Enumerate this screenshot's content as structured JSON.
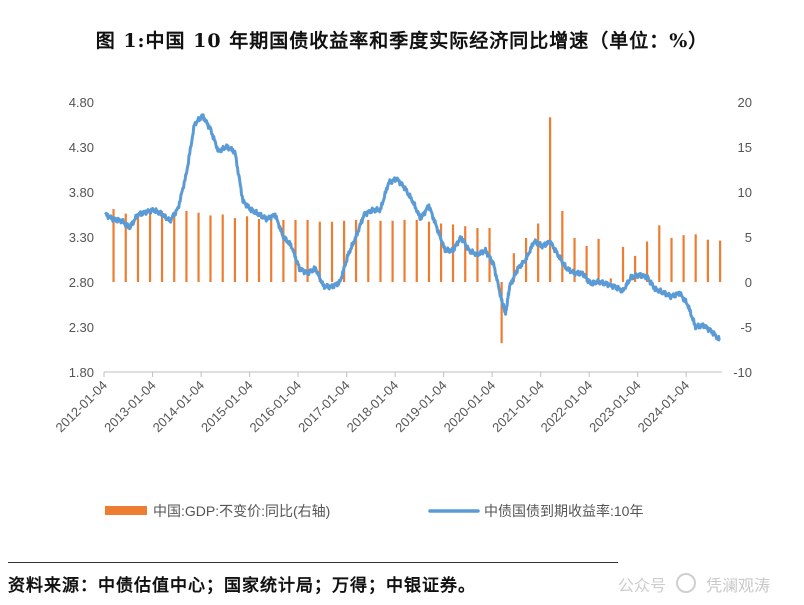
{
  "title": "图 1:中国 10 年期国债收益率和季度实际经济同比增速（单位：%）",
  "source": "资料来源：中债估值中心；国家统计局；万得；中银证券。",
  "watermark": {
    "text": "凭澜观涛",
    "sub": "公众号"
  },
  "colors": {
    "bar": "#ED7D31",
    "line": "#5B9BD5",
    "axis": "#bfbfbf"
  },
  "chart_data": {
    "type": "bar+line",
    "left_axis": {
      "ticks": [
        "1.80",
        "2.30",
        "2.80",
        "3.30",
        "3.80",
        "4.30",
        "4.80"
      ],
      "ylim": [
        1.8,
        4.8
      ]
    },
    "right_axis": {
      "ticks": [
        "-10",
        "-5",
        "0",
        "5",
        "10",
        "15",
        "20"
      ],
      "ylim": [
        -10,
        20
      ]
    },
    "x_ticks": [
      "2012-01-04",
      "2013-01-04",
      "2014-01-04",
      "2015-01-04",
      "2016-01-04",
      "2017-01-04",
      "2018-01-04",
      "2019-01-04",
      "2020-01-04",
      "2021-01-04",
      "2022-01-04",
      "2023-01-04",
      "2024-01-04"
    ],
    "x_range": [
      "2012-01-04",
      "2024-09-30"
    ],
    "series": [
      {
        "name": "中国:GDP:不变价:同比(右轴)",
        "type": "bar",
        "axis": "right",
        "dates": [
          "2012-03",
          "2012-06",
          "2012-09",
          "2012-12",
          "2013-03",
          "2013-06",
          "2013-09",
          "2013-12",
          "2014-03",
          "2014-06",
          "2014-09",
          "2014-12",
          "2015-03",
          "2015-06",
          "2015-09",
          "2015-12",
          "2016-03",
          "2016-06",
          "2016-09",
          "2016-12",
          "2017-03",
          "2017-06",
          "2017-09",
          "2017-12",
          "2018-03",
          "2018-06",
          "2018-09",
          "2018-12",
          "2019-03",
          "2019-06",
          "2019-09",
          "2019-12",
          "2020-03",
          "2020-06",
          "2020-09",
          "2020-12",
          "2021-03",
          "2021-06",
          "2021-09",
          "2021-12",
          "2022-03",
          "2022-06",
          "2022-09",
          "2022-12",
          "2023-03",
          "2023-06",
          "2023-09",
          "2023-12",
          "2024-03",
          "2024-06",
          "2024-09"
        ],
        "values": [
          8.1,
          7.6,
          7.5,
          8.1,
          7.9,
          7.6,
          7.9,
          7.7,
          7.4,
          7.5,
          7.1,
          7.3,
          7.0,
          7.0,
          6.9,
          6.9,
          6.9,
          6.7,
          6.7,
          6.8,
          6.9,
          6.9,
          6.8,
          6.8,
          6.9,
          6.9,
          6.7,
          6.5,
          6.4,
          6.2,
          6.0,
          6.0,
          -6.8,
          3.2,
          4.9,
          6.5,
          18.3,
          7.9,
          4.9,
          4.0,
          4.8,
          0.4,
          3.9,
          2.9,
          4.5,
          6.3,
          4.9,
          5.2,
          5.3,
          4.7,
          4.6
        ]
      },
      {
        "name": "中债国债到期收益率:10年",
        "type": "line",
        "axis": "left",
        "dates": [
          "2012-01",
          "2012-03",
          "2012-05",
          "2012-07",
          "2012-09",
          "2012-11",
          "2013-01",
          "2013-03",
          "2013-05",
          "2013-07",
          "2013-09",
          "2013-11",
          "2014-01",
          "2014-03",
          "2014-05",
          "2014-07",
          "2014-09",
          "2014-11",
          "2015-01",
          "2015-03",
          "2015-05",
          "2015-07",
          "2015-09",
          "2015-11",
          "2016-01",
          "2016-03",
          "2016-05",
          "2016-07",
          "2016-09",
          "2016-11",
          "2017-01",
          "2017-03",
          "2017-05",
          "2017-07",
          "2017-09",
          "2017-11",
          "2018-01",
          "2018-03",
          "2018-05",
          "2018-07",
          "2018-09",
          "2018-11",
          "2019-01",
          "2019-03",
          "2019-05",
          "2019-07",
          "2019-09",
          "2019-11",
          "2020-01",
          "2020-03",
          "2020-04",
          "2020-05",
          "2020-07",
          "2020-09",
          "2020-11",
          "2021-01",
          "2021-03",
          "2021-05",
          "2021-07",
          "2021-09",
          "2021-11",
          "2022-01",
          "2022-03",
          "2022-05",
          "2022-07",
          "2022-09",
          "2022-11",
          "2023-01",
          "2023-03",
          "2023-05",
          "2023-07",
          "2023-09",
          "2023-11",
          "2024-01",
          "2024-03",
          "2024-05",
          "2024-07",
          "2024-09"
        ],
        "values": [
          3.55,
          3.5,
          3.48,
          3.4,
          3.55,
          3.58,
          3.6,
          3.55,
          3.48,
          3.62,
          4.0,
          4.55,
          4.65,
          4.5,
          4.25,
          4.3,
          4.25,
          3.7,
          3.6,
          3.55,
          3.5,
          3.55,
          3.3,
          3.2,
          2.95,
          2.9,
          2.95,
          2.75,
          2.75,
          2.8,
          3.1,
          3.3,
          3.55,
          3.6,
          3.6,
          3.9,
          3.95,
          3.85,
          3.7,
          3.5,
          3.65,
          3.4,
          3.15,
          3.15,
          3.3,
          3.15,
          3.1,
          3.15,
          3.0,
          2.6,
          2.45,
          2.75,
          2.95,
          3.05,
          3.25,
          3.2,
          3.25,
          3.1,
          2.95,
          2.9,
          2.9,
          2.78,
          2.8,
          2.78,
          2.75,
          2.7,
          2.85,
          2.88,
          2.86,
          2.72,
          2.68,
          2.64,
          2.68,
          2.55,
          2.3,
          2.32,
          2.25,
          2.15
        ]
      }
    ],
    "legend_position": "bottom"
  }
}
